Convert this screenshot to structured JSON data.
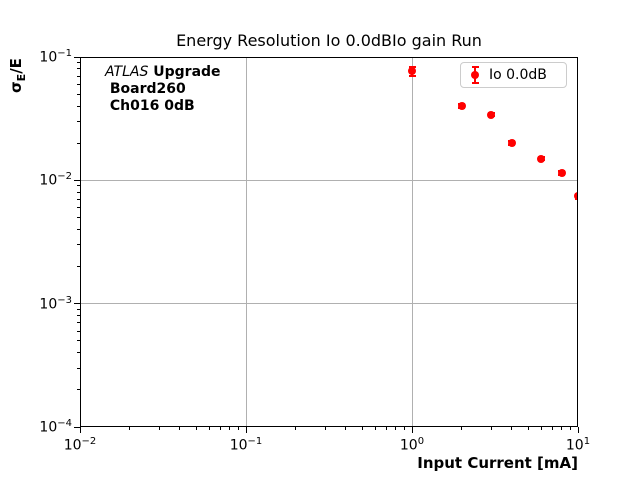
{
  "chart_data": {
    "type": "scatter",
    "title": "Energy Resolution Io 0.0dBIo gain Run",
    "xlabel": "Input Current [mA]",
    "ylabel": "σ_E/E",
    "ylabel_parts": {
      "sigma": "σ",
      "subscript": "E",
      "rest": "/E"
    },
    "xscale": "log",
    "yscale": "log",
    "xlim": [
      0.01,
      10
    ],
    "ylim": [
      0.0001,
      0.1
    ],
    "x_tick_exponents": [
      -2,
      -1,
      0,
      1
    ],
    "y_tick_exponents": [
      -1,
      -2,
      -3,
      -4
    ],
    "grid": true,
    "legend": {
      "label": "Io 0.0dB",
      "position": "upper right"
    },
    "annotation": {
      "line1_italic": "ATLAS",
      "line1_bold": " Upgrade",
      "line2": " Board260",
      "line3": " Ch016 0dB"
    },
    "series": [
      {
        "name": "Io 0.0dB",
        "color": "#ff0000",
        "marker": "o",
        "x": [
          1,
          2,
          3,
          4,
          6,
          8,
          10
        ],
        "y": [
          0.077,
          0.04,
          0.034,
          0.02,
          0.015,
          0.0115,
          0.0074
        ],
        "yerr": [
          0.0065,
          0.0012,
          0.0009,
          0.0007,
          0.0005,
          0.0004,
          0.0003
        ]
      }
    ]
  },
  "colors": {
    "accent": "#ff0000",
    "grid": "#b0b0b0",
    "spine": "#000000",
    "legend_border": "#cccccc",
    "background": "#ffffff"
  }
}
